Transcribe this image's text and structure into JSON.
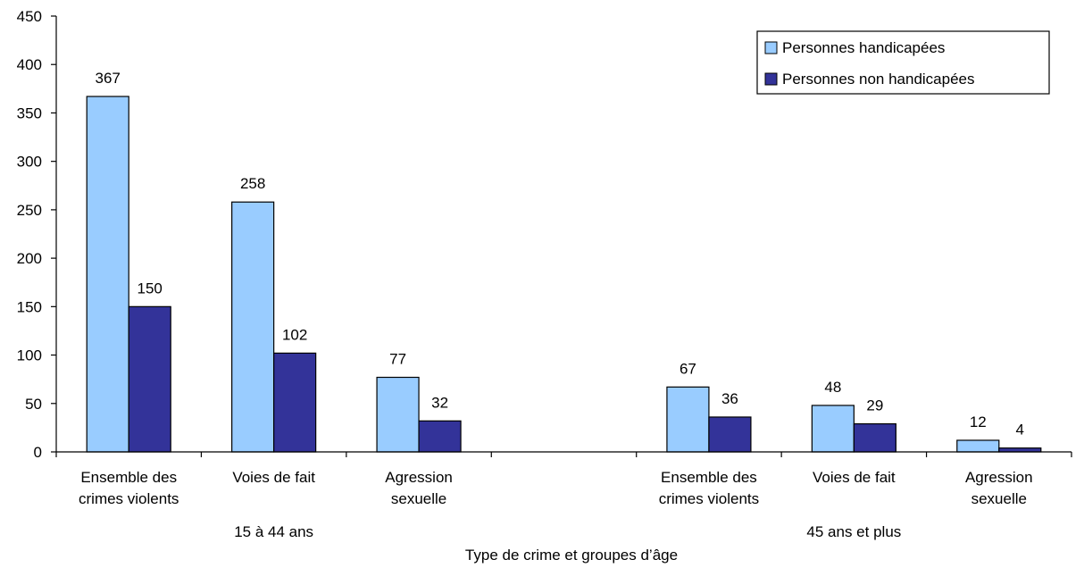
{
  "chart_data": {
    "type": "bar",
    "title": "",
    "xlabel": "Type de crime et groupes d’âge",
    "ylabel": "",
    "ylim": [
      0,
      450
    ],
    "yticks": [
      0,
      50,
      100,
      150,
      200,
      250,
      300,
      350,
      400,
      450
    ],
    "grid": false,
    "legend_position": "top-right",
    "categories": [
      [
        "Ensemble des",
        "crimes violents"
      ],
      [
        "Voies de fait"
      ],
      [
        "Agression",
        "sexuelle"
      ],
      [],
      [
        "Ensemble des",
        "crimes violents"
      ],
      [
        "Voies de fait"
      ],
      [
        "Agression",
        "sexuelle"
      ]
    ],
    "groups": [
      {
        "label": "15 à 44 ans",
        "start": 0,
        "end": 2
      },
      {
        "label": "45 ans et plus",
        "start": 4,
        "end": 6
      }
    ],
    "series": [
      {
        "name": "Personnes handicapées",
        "color": "#99ccff",
        "values": [
          367,
          258,
          77,
          null,
          67,
          48,
          12
        ]
      },
      {
        "name": "Personnes non handicapées",
        "color": "#333399",
        "values": [
          150,
          102,
          32,
          null,
          36,
          29,
          4
        ]
      }
    ]
  }
}
